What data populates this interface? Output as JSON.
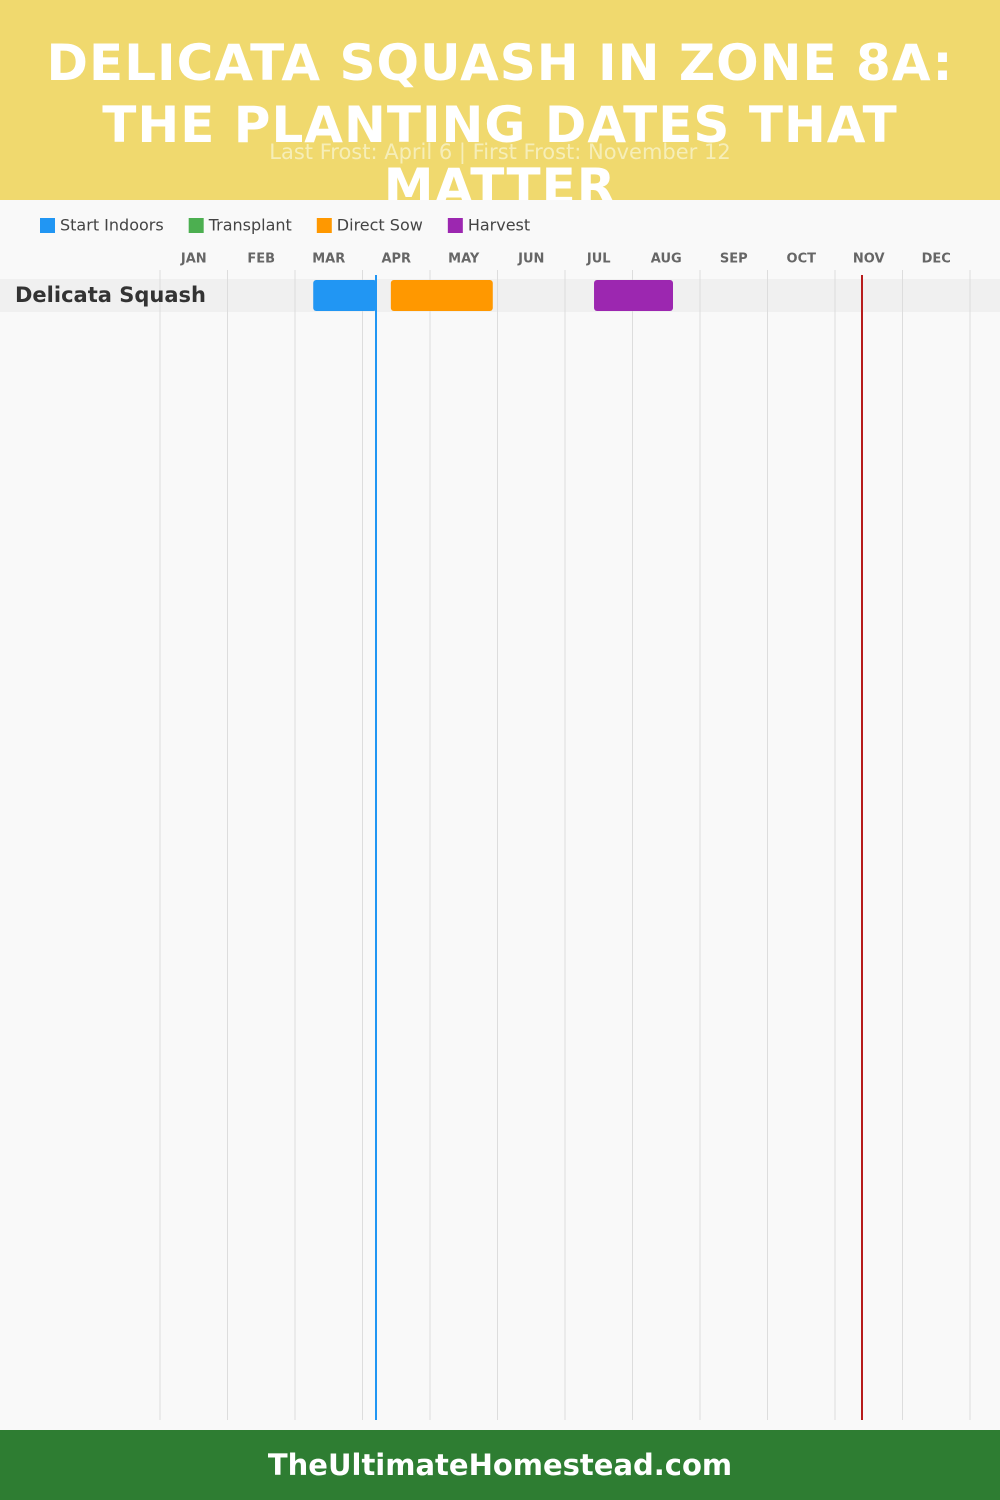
{
  "chart_data": {
    "type": "gantt",
    "title": "DELICATA SQUASH IN ZONE 8A: THE PLANTING DATES THAT MATTER",
    "subtitle": "Last Frost: April 6 | First Frost: November 12",
    "footer": "TheUltimateHomestead.com",
    "months": [
      "JAN",
      "FEB",
      "MAR",
      "APR",
      "MAY",
      "JUN",
      "JUL",
      "AUG",
      "SEP",
      "OCT",
      "NOV",
      "DEC"
    ],
    "xlim": [
      0,
      12
    ],
    "categories": [
      "Delicata Squash"
    ],
    "series": [
      {
        "name": "Start Indoors",
        "color": "#2196f3",
        "values": [
          [
            2.27,
            3.21
          ]
        ]
      },
      {
        "name": "Transplant",
        "color": "#4caf50",
        "values": [
          null
        ]
      },
      {
        "name": "Direct Sow",
        "color": "#ff9800",
        "values": [
          [
            3.42,
            4.93
          ]
        ]
      },
      {
        "name": "Harvest",
        "color": "#9c27b0",
        "values": [
          [
            6.43,
            7.6
          ]
        ]
      }
    ],
    "frost_lines": [
      {
        "value": 3.2,
        "color": "#2196f3"
      },
      {
        "value": 10.4,
        "color": "#b71c1c"
      }
    ]
  }
}
